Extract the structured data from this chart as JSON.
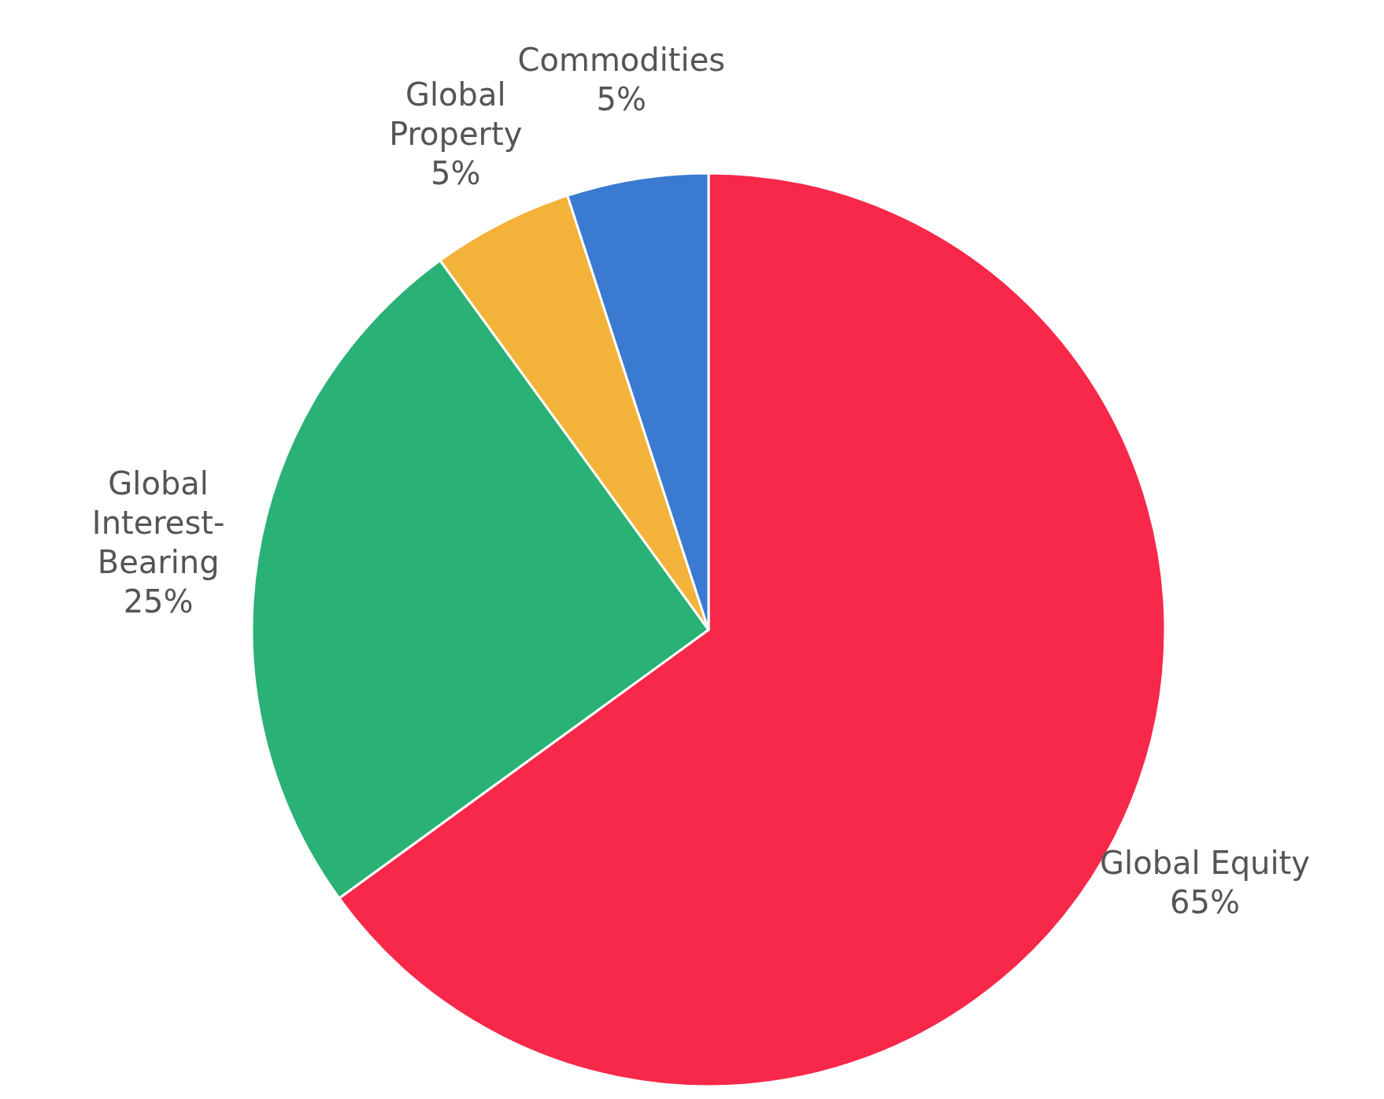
{
  "chart_data": {
    "type": "pie",
    "categories": [
      "Global Equity",
      "Global Interest-Bearing",
      "Global Property",
      "Commodities"
    ],
    "values": [
      65,
      25,
      5,
      5
    ],
    "colors": [
      "#f7284a",
      "#2ab176",
      "#f3b33a",
      "#3a7bd1"
    ],
    "value_labels": [
      "65%",
      "25%",
      "5%",
      "5%"
    ]
  }
}
